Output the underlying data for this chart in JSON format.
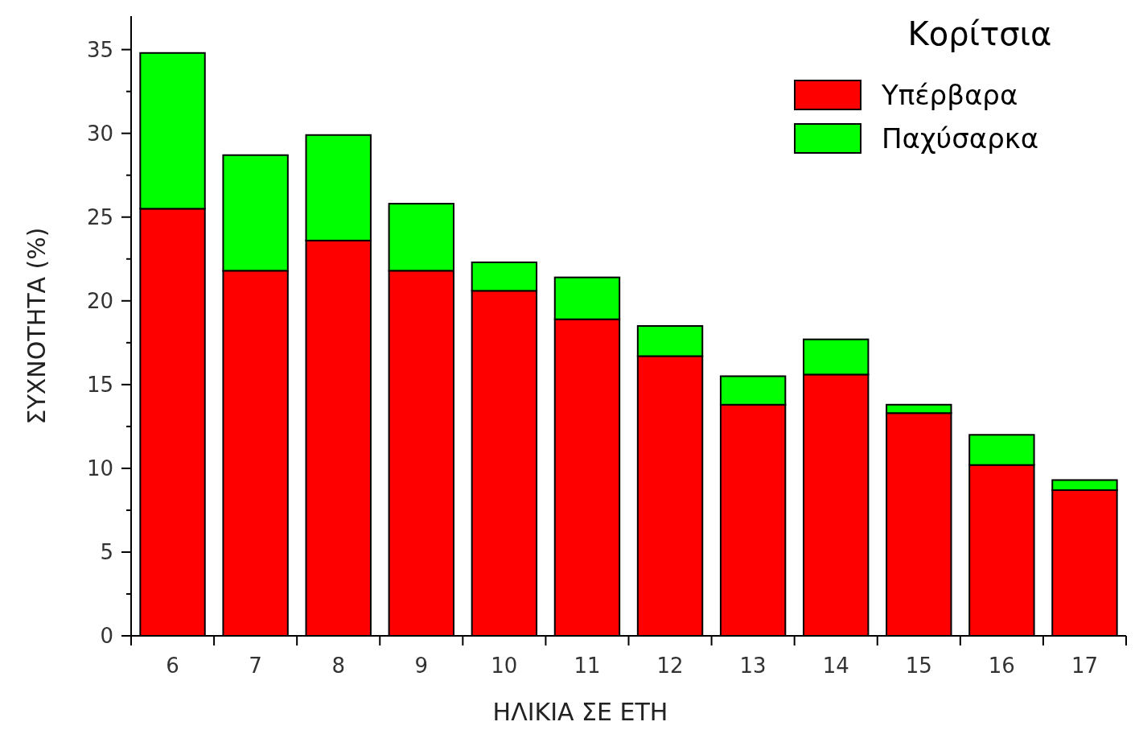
{
  "chart_data": {
    "type": "bar",
    "stacked": true,
    "legend_title": "Κορίτσια",
    "xlabel": "ΗΛΙΚΙΑ ΣΕ ΕΤΗ",
    "ylabel": "ΣΥΧΝΟΤΗΤΑ (%)",
    "categories": [
      "6",
      "7",
      "8",
      "9",
      "10",
      "11",
      "12",
      "13",
      "14",
      "15",
      "16",
      "17"
    ],
    "series": [
      {
        "name": "Υπέρβαρα",
        "color": "#ff0000",
        "values": [
          25.5,
          21.8,
          23.6,
          21.8,
          20.6,
          18.9,
          16.7,
          13.8,
          15.6,
          13.3,
          10.2,
          8.7
        ]
      },
      {
        "name": "Παχύσαρκα",
        "color": "#00ff00",
        "values": [
          9.3,
          6.9,
          6.3,
          4.0,
          1.7,
          2.5,
          1.8,
          1.7,
          2.1,
          0.5,
          1.8,
          0.6
        ]
      }
    ],
    "ylim": [
      0,
      37
    ],
    "yticks": [
      0,
      5,
      10,
      15,
      20,
      25,
      30,
      35
    ],
    "grid": false,
    "legend": "top right"
  }
}
